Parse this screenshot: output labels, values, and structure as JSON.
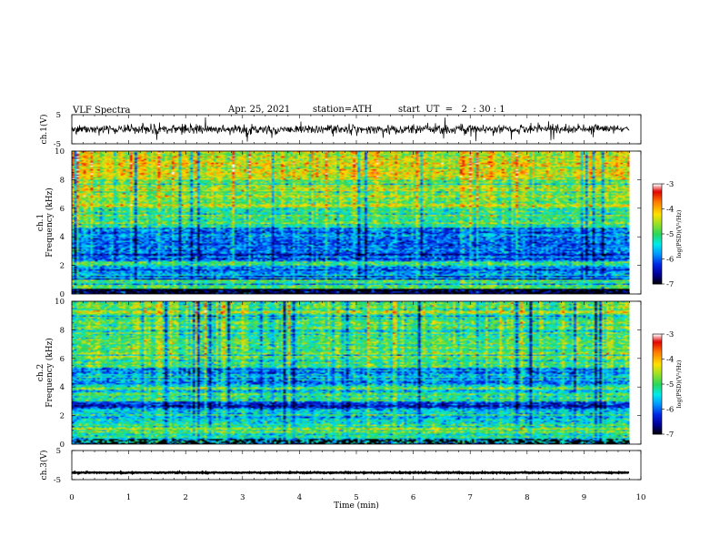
{
  "header": {
    "title": "VLF  Spectra",
    "date": "Apr. 25, 2021",
    "station": "station=ATH",
    "start": "start  UT  =   2  : 30 : 1"
  },
  "chart_data": [
    {
      "type": "line",
      "panel": "ch1-waveform",
      "ylabel": "ch.1(V)",
      "ylim": [
        -5,
        5
      ],
      "yticks": [
        "5",
        "-5"
      ],
      "x_range_min": [
        0,
        9.8
      ],
      "description_values": {
        "baseline_V": 0,
        "typical_amplitude_V": 1.5,
        "max_spike_V": 4.2
      },
      "color": "#000000"
    },
    {
      "type": "heatmap",
      "panel": "ch1-spectrogram",
      "ylabel": "Frequency  (kHz)",
      "channel_label": "ch.1",
      "xlim": [
        0,
        9.8
      ],
      "ylim": [
        0,
        10
      ],
      "yticks": [
        "0",
        "2",
        "4",
        "6",
        "8",
        "10"
      ],
      "colorbar": {
        "label": "log(PSD)(V²/Hz)",
        "range": [
          -7,
          -3
        ],
        "ticks": [
          "-3",
          "-4",
          "-5",
          "-6",
          "-7"
        ],
        "colors": [
          "#000000",
          "#0000c0",
          "#0070ff",
          "#00e0e0",
          "#20d060",
          "#c0e020",
          "#ffe000",
          "#ff8000",
          "#e00000",
          "#ffffff"
        ]
      },
      "bands_kHz_log10PSD": [
        {
          "from": 0.0,
          "to": 0.4,
          "level": -6.6
        },
        {
          "from": 0.4,
          "to": 1.0,
          "level": -5.2
        },
        {
          "from": 1.0,
          "to": 2.0,
          "level": -5.9
        },
        {
          "from": 2.0,
          "to": 2.3,
          "level": -5.1
        },
        {
          "from": 2.3,
          "to": 4.6,
          "level": -6.0
        },
        {
          "from": 4.6,
          "to": 6.0,
          "level": -5.1
        },
        {
          "from": 6.0,
          "to": 8.0,
          "level": -4.7
        },
        {
          "from": 8.0,
          "to": 10.0,
          "level": -4.3
        }
      ]
    },
    {
      "type": "heatmap",
      "panel": "ch2-spectrogram",
      "ylabel": "Frequency  (kHz)",
      "channel_label": "ch.2",
      "xlim": [
        0,
        9.8
      ],
      "ylim": [
        0,
        10
      ],
      "yticks": [
        "0",
        "2",
        "4",
        "6",
        "8",
        "10"
      ],
      "colorbar": {
        "label": "log(PSD)(V²/Hz)",
        "range": [
          -7,
          -3
        ],
        "ticks": [
          "-3",
          "-4",
          "-5",
          "-6",
          "-7"
        ]
      },
      "bands_kHz_log10PSD": [
        {
          "from": 0.0,
          "to": 0.6,
          "level": -5.4
        },
        {
          "from": 0.6,
          "to": 1.2,
          "level": -4.9
        },
        {
          "from": 1.2,
          "to": 2.4,
          "level": -5.3
        },
        {
          "from": 2.4,
          "to": 3.0,
          "level": -5.9
        },
        {
          "from": 3.0,
          "to": 4.2,
          "level": -5.1
        },
        {
          "from": 4.2,
          "to": 5.4,
          "level": -5.8
        },
        {
          "from": 5.4,
          "to": 10.0,
          "level": -5.0
        }
      ]
    },
    {
      "type": "line",
      "panel": "ch3-waveform",
      "ylabel": "ch.3(V)",
      "ylim": [
        -5,
        5
      ],
      "yticks": [
        "5",
        "-5"
      ],
      "x_range_min": [
        0,
        9.8
      ],
      "description_values": {
        "baseline_V": -2.6,
        "typical_amplitude_V": 0.15
      },
      "color": "#000000"
    }
  ],
  "xaxis": {
    "label": "Time  (min)",
    "ticks": [
      "0",
      "1",
      "2",
      "3",
      "4",
      "5",
      "6",
      "7",
      "8",
      "9",
      "10"
    ],
    "range": [
      0,
      10
    ]
  }
}
